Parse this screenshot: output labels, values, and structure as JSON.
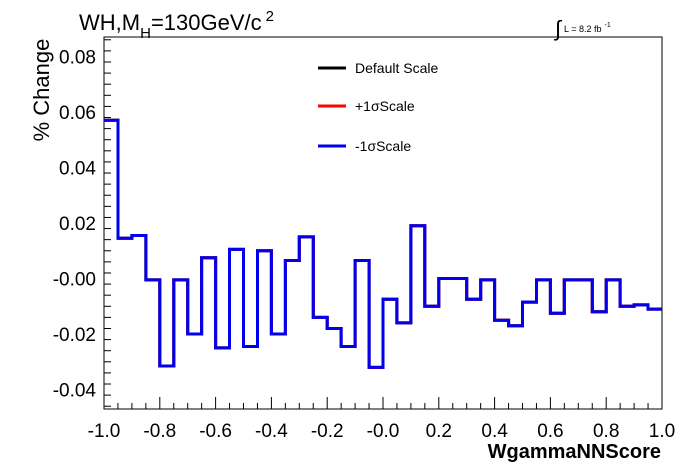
{
  "chart_data": {
    "type": "line",
    "title": {
      "main": "WH,M",
      "sub": "H",
      "rest": "=130GeV/c",
      "sup": "2"
    },
    "luminosity": {
      "prefix": "L = 8.2 fb",
      "sup": "-1",
      "integral_symbol": "∫"
    },
    "xlabel": "WgammaNNScore",
    "ylabel": "% Change",
    "xlim": [
      -1.0,
      1.0
    ],
    "ylim": [
      -0.047,
      0.087
    ],
    "xticks": [
      {
        "v": -1.0,
        "label": "-1.0"
      },
      {
        "v": -0.8,
        "label": "-0.8"
      },
      {
        "v": -0.6,
        "label": "-0.6"
      },
      {
        "v": -0.4,
        "label": "-0.4"
      },
      {
        "v": -0.2,
        "label": "-0.2"
      },
      {
        "v": 0.0,
        "label": "-0.0"
      },
      {
        "v": 0.2,
        "label": "0.2"
      },
      {
        "v": 0.4,
        "label": "0.4"
      },
      {
        "v": 0.6,
        "label": "0.6"
      },
      {
        "v": 0.8,
        "label": "0.8"
      },
      {
        "v": 1.0,
        "label": "1.0"
      }
    ],
    "yticks": [
      {
        "v": -0.04,
        "label": "-0.04"
      },
      {
        "v": -0.02,
        "label": "-0.02"
      },
      {
        "v": 0.0,
        "label": "-0.00"
      },
      {
        "v": 0.02,
        "label": "0.02"
      },
      {
        "v": 0.04,
        "label": "0.04"
      },
      {
        "v": 0.06,
        "label": "0.06"
      },
      {
        "v": 0.08,
        "label": "0.08"
      }
    ],
    "grid": false,
    "legend_position": "top-center",
    "bin_edges": [
      -1.0,
      -0.95,
      -0.9,
      -0.85,
      -0.8,
      -0.75,
      -0.7,
      -0.65,
      -0.6,
      -0.55,
      -0.5,
      -0.45,
      -0.4,
      -0.35,
      -0.3,
      -0.25,
      -0.2,
      -0.15,
      -0.1,
      -0.05,
      0.0,
      0.05,
      0.1,
      0.15,
      0.2,
      0.25,
      0.3,
      0.35,
      0.4,
      0.45,
      0.5,
      0.55,
      0.6,
      0.65,
      0.7,
      0.75,
      0.8,
      0.85,
      0.9,
      0.95,
      1.0
    ],
    "series": [
      {
        "name": "Default Scale",
        "color": "#000000",
        "values": [
          0.057,
          0.0145,
          0.0155,
          -0.0005,
          -0.0315,
          -0.0005,
          -0.02,
          0.0075,
          -0.025,
          0.0105,
          -0.0245,
          0.01,
          -0.02,
          0.0065,
          0.015,
          -0.014,
          -0.018,
          -0.0245,
          0.0065,
          -0.032,
          -0.0075,
          -0.016,
          0.019,
          -0.01,
          0.0,
          0.0,
          -0.0075,
          -0.0005,
          -0.015,
          -0.017,
          -0.0085,
          -0.0005,
          -0.0125,
          -0.0005,
          -0.0005,
          -0.012,
          -0.0005,
          -0.01,
          -0.0095,
          -0.011
        ]
      },
      {
        "name": "+1σScale",
        "color": "#ff0000",
        "values": [
          0.057,
          0.0145,
          0.0155,
          -0.0005,
          -0.0315,
          -0.0005,
          -0.02,
          0.0075,
          -0.025,
          0.0105,
          -0.0245,
          0.01,
          -0.02,
          0.0065,
          0.015,
          -0.014,
          -0.018,
          -0.0245,
          0.0065,
          -0.032,
          -0.0075,
          -0.016,
          0.019,
          -0.01,
          0.0,
          0.0,
          -0.0075,
          -0.0005,
          -0.015,
          -0.017,
          -0.0085,
          -0.0005,
          -0.0125,
          -0.0005,
          -0.0005,
          -0.012,
          -0.0005,
          -0.01,
          -0.0095,
          -0.011
        ]
      },
      {
        "name": "-1σScale",
        "color": "#0000ee",
        "values": [
          0.057,
          0.0145,
          0.0155,
          -0.0005,
          -0.0315,
          -0.0005,
          -0.02,
          0.0075,
          -0.025,
          0.0105,
          -0.0245,
          0.01,
          -0.02,
          0.0065,
          0.015,
          -0.014,
          -0.018,
          -0.0245,
          0.0065,
          -0.032,
          -0.0075,
          -0.016,
          0.019,
          -0.01,
          0.0,
          0.0,
          -0.0075,
          -0.0005,
          -0.015,
          -0.017,
          -0.0085,
          -0.0005,
          -0.0125,
          -0.0005,
          -0.0005,
          -0.012,
          -0.0005,
          -0.01,
          -0.0095,
          -0.011
        ]
      }
    ]
  }
}
